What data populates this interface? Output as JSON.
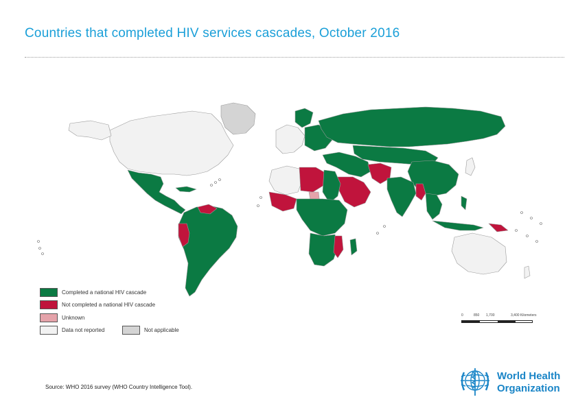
{
  "title": "Countries that completed HIV services cascades, October 2016",
  "colors": {
    "completed": "#0b7a43",
    "not_completed": "#c0143c",
    "unknown": "#e5a3aa",
    "not_reported": "#f2f2f2",
    "not_applicable": "#d4d4d4",
    "title": "#1a9fd8",
    "who_blue": "#1a85c7"
  },
  "legend": {
    "items": [
      {
        "label": "Completed a national HIV cascade",
        "color": "#0b7a43"
      },
      {
        "label": "Not completed a national HIV cascade",
        "color": "#c0143c"
      },
      {
        "label": "Unknown",
        "color": "#e5a3aa"
      },
      {
        "label": "Data not reported",
        "color": "#f2f2f2"
      },
      {
        "label": "Not applicable",
        "color": "#d4d4d4"
      }
    ]
  },
  "scale": {
    "labels": [
      "0",
      "850",
      "1,700",
      "3,400 Kilometers"
    ]
  },
  "source": "Source: WHO 2016 survey (WHO Country Intelligence Tool).",
  "logo": {
    "line1": "World Health",
    "line2": "Organization"
  }
}
